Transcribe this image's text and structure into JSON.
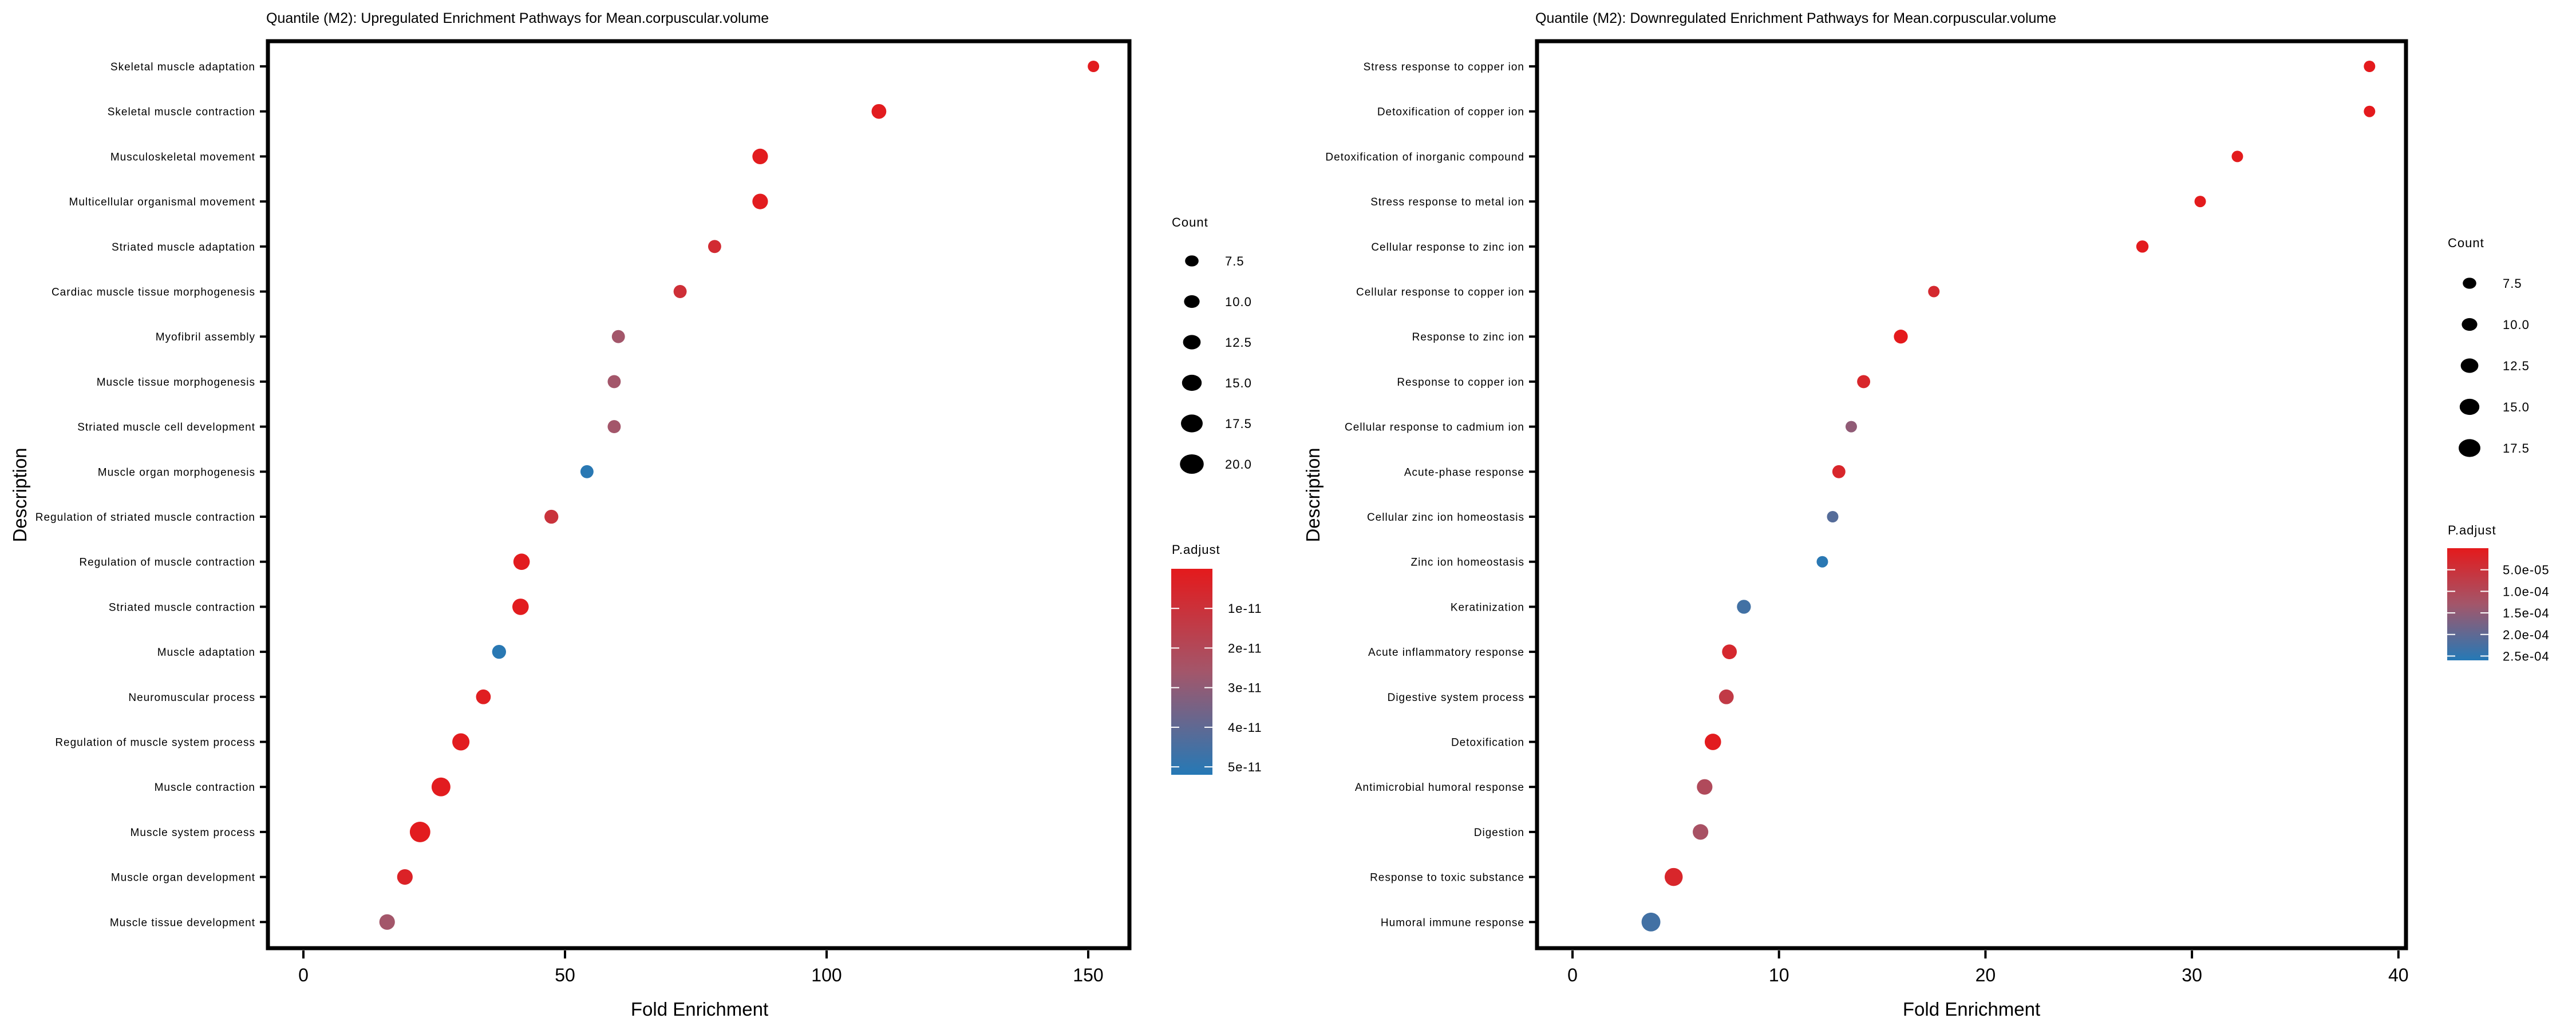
{
  "chart_data": [
    {
      "type": "scatter",
      "subtype": "dot-plot",
      "title": "Quantile (M2): Upregulated Enrichment Pathways for Mean.corpuscular.volume",
      "xlabel": "Fold Enrichment",
      "ylabel": "Description",
      "xlim": [
        -7,
        158
      ],
      "xticks": [
        0,
        50,
        100,
        150
      ],
      "grid": false,
      "size_legend": {
        "title": "Count",
        "values": [
          "7.5",
          "10.0",
          "12.5",
          "15.0",
          "17.5",
          "20.0"
        ]
      },
      "color_legend": {
        "title": "P.adjust",
        "labels": [
          "1e-11",
          "2e-11",
          "3e-11",
          "4e-11",
          "5e-11"
        ],
        "low_color": "#e41a1c",
        "high_color": "#377eb8",
        "range": [
          0,
          5.8e-11
        ]
      },
      "points": [
        {
          "description": "Skeletal muscle adaptation",
          "fold_enrichment": 151.0,
          "count": 5,
          "p_adjust": 1e-12
        },
        {
          "description": "Skeletal muscle contraction",
          "fold_enrichment": 110.0,
          "count": 9,
          "p_adjust": 1e-12
        },
        {
          "description": "Musculoskeletal movement",
          "fold_enrichment": 87.3,
          "count": 10,
          "p_adjust": 1e-12
        },
        {
          "description": "Multicellular organismal movement",
          "fold_enrichment": 87.3,
          "count": 10,
          "p_adjust": 1e-12
        },
        {
          "description": "Striated muscle adaptation",
          "fold_enrichment": 78.6,
          "count": 7,
          "p_adjust": 8e-12
        },
        {
          "description": "Cardiac muscle tissue morphogenesis",
          "fold_enrichment": 72.0,
          "count": 7,
          "p_adjust": 1e-11
        },
        {
          "description": "Myofibril assembly",
          "fold_enrichment": 60.2,
          "count": 7,
          "p_adjust": 2.9e-11
        },
        {
          "description": "Muscle tissue morphogenesis",
          "fold_enrichment": 59.4,
          "count": 7,
          "p_adjust": 2.9e-11
        },
        {
          "description": "Striated muscle cell development",
          "fold_enrichment": 59.4,
          "count": 7,
          "p_adjust": 2.9e-11
        },
        {
          "description": "Muscle organ morphogenesis",
          "fold_enrichment": 54.2,
          "count": 7,
          "p_adjust": 5.7e-11
        },
        {
          "description": "Regulation of striated muscle contraction",
          "fold_enrichment": 47.4,
          "count": 8,
          "p_adjust": 1.2e-11
        },
        {
          "description": "Regulation of muscle contraction",
          "fold_enrichment": 41.7,
          "count": 11,
          "p_adjust": 1e-12
        },
        {
          "description": "Striated muscle contraction",
          "fold_enrichment": 41.5,
          "count": 11,
          "p_adjust": 1e-12
        },
        {
          "description": "Muscle adaptation",
          "fold_enrichment": 37.4,
          "count": 8,
          "p_adjust": 5.7e-11
        },
        {
          "description": "Neuromuscular process",
          "fold_enrichment": 34.4,
          "count": 9,
          "p_adjust": 2e-12
        },
        {
          "description": "Regulation of muscle system process",
          "fold_enrichment": 30.1,
          "count": 12,
          "p_adjust": 1e-12
        },
        {
          "description": "Muscle contraction",
          "fold_enrichment": 26.3,
          "count": 14,
          "p_adjust": 1e-12
        },
        {
          "description": "Muscle system process",
          "fold_enrichment": 22.3,
          "count": 16,
          "p_adjust": 1e-12
        },
        {
          "description": "Muscle organ development",
          "fold_enrichment": 19.4,
          "count": 10,
          "p_adjust": 4e-12
        },
        {
          "description": "Muscle tissue development",
          "fold_enrichment": 16.0,
          "count": 10,
          "p_adjust": 2.9e-11
        }
      ]
    },
    {
      "type": "scatter",
      "subtype": "dot-plot",
      "title": "Quantile (M2): Downregulated Enrichment Pathways for Mean.corpuscular.volume",
      "xlabel": "Fold Enrichment",
      "ylabel": "Description",
      "xlim": [
        -1.8,
        40.3
      ],
      "xticks": [
        0,
        10,
        20,
        30,
        40
      ],
      "grid": false,
      "size_legend": {
        "title": "Count",
        "values": [
          "7.5",
          "10.0",
          "12.5",
          "15.0",
          "17.5"
        ]
      },
      "color_legend": {
        "title": "P.adjust",
        "labels": [
          "5.0e-05",
          "1.0e-04",
          "1.5e-04",
          "2.0e-04",
          "2.5e-04"
        ],
        "low_color": "#e41a1c",
        "high_color": "#377eb8",
        "range": [
          0,
          0.00026
        ]
      },
      "points": [
        {
          "description": "Stress response to copper ion",
          "fold_enrichment": 38.6,
          "count": 5,
          "p_adjust": 1e-06
        },
        {
          "description": "Detoxification of copper ion",
          "fold_enrichment": 38.6,
          "count": 5,
          "p_adjust": 1e-06
        },
        {
          "description": "Detoxification of inorganic compound",
          "fold_enrichment": 32.2,
          "count": 5,
          "p_adjust": 2e-06
        },
        {
          "description": "Stress response to metal ion",
          "fold_enrichment": 30.4,
          "count": 5,
          "p_adjust": 2e-06
        },
        {
          "description": "Cellular response to zinc ion",
          "fold_enrichment": 27.6,
          "count": 6,
          "p_adjust": 3e-06
        },
        {
          "description": "Cellular response to copper ion",
          "fold_enrichment": 17.5,
          "count": 5,
          "p_adjust": 3.2e-05
        },
        {
          "description": "Response to zinc ion",
          "fold_enrichment": 15.9,
          "count": 8,
          "p_adjust": 1e-06
        },
        {
          "description": "Response to copper ion",
          "fold_enrichment": 14.1,
          "count": 7,
          "p_adjust": 2.5e-05
        },
        {
          "description": "Cellular response to cadmium ion",
          "fold_enrichment": 13.5,
          "count": 5,
          "p_adjust": 0.00015
        },
        {
          "description": "Acute-phase response",
          "fold_enrichment": 12.9,
          "count": 7,
          "p_adjust": 2.5e-05
        },
        {
          "description": "Cellular zinc ion homeostasis",
          "fold_enrichment": 12.6,
          "count": 5,
          "p_adjust": 0.00021
        },
        {
          "description": "Zinc ion homeostasis",
          "fold_enrichment": 12.1,
          "count": 5,
          "p_adjust": 0.000255
        },
        {
          "description": "Keratinization",
          "fold_enrichment": 8.3,
          "count": 8,
          "p_adjust": 0.00023
        },
        {
          "description": "Acute inflammatory response",
          "fold_enrichment": 7.6,
          "count": 9,
          "p_adjust": 3e-05
        },
        {
          "description": "Digestive system process",
          "fold_enrichment": 7.45,
          "count": 9,
          "p_adjust": 7e-05
        },
        {
          "description": "Detoxification",
          "fold_enrichment": 6.8,
          "count": 11,
          "p_adjust": 5e-06
        },
        {
          "description": "Antimicrobial humoral response",
          "fold_enrichment": 6.4,
          "count": 10,
          "p_adjust": 0.000105
        },
        {
          "description": "Digestion",
          "fold_enrichment": 6.2,
          "count": 10,
          "p_adjust": 0.00012
        },
        {
          "description": "Response to toxic substance",
          "fold_enrichment": 4.9,
          "count": 13,
          "p_adjust": 2.5e-05
        },
        {
          "description": "Humoral immune response",
          "fold_enrichment": 3.8,
          "count": 14,
          "p_adjust": 0.00023
        }
      ]
    }
  ]
}
